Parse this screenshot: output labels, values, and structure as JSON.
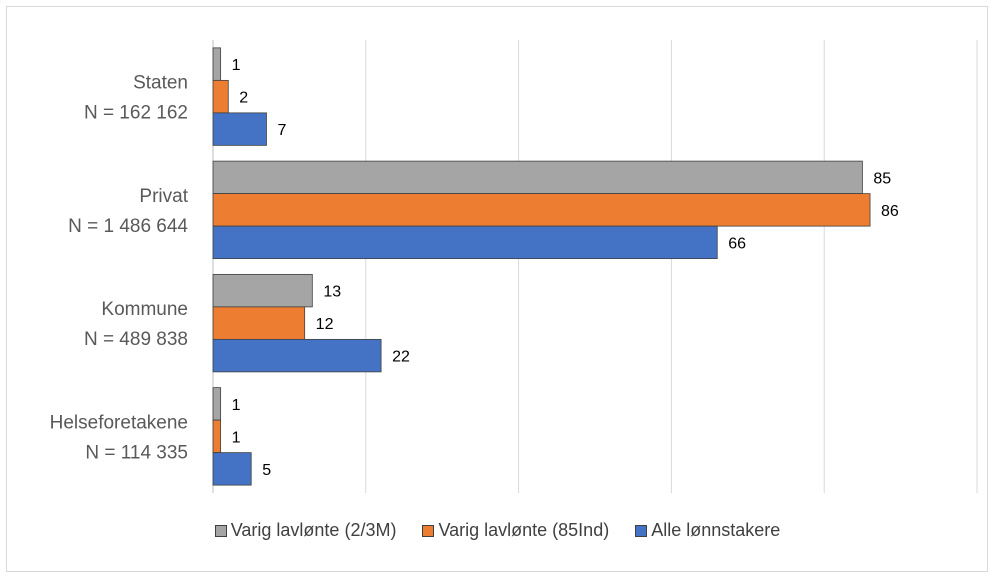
{
  "chart_data": {
    "type": "bar",
    "orientation": "horizontal",
    "categories": [
      {
        "name": "Staten",
        "n": "N = 162 162"
      },
      {
        "name": "Privat",
        "n": "N = 1 486 644"
      },
      {
        "name": "Kommune",
        "n": "N = 489 838"
      },
      {
        "name": "Helseforetakene",
        "n": "N = 114 335"
      }
    ],
    "series": [
      {
        "name": "Varig lavlønte (2/3M)",
        "color": "#a5a5a5",
        "values": [
          1,
          85,
          13,
          1
        ]
      },
      {
        "name": "Varig lavlønte (85Ind)",
        "color": "#ed7d31",
        "values": [
          2,
          86,
          12,
          1
        ]
      },
      {
        "name": "Alle lønnstakere",
        "color": "#4472c4",
        "values": [
          7,
          66,
          22,
          5
        ]
      }
    ],
    "xlim": [
      0,
      100
    ],
    "gridlines": [
      0,
      20,
      40,
      60,
      80,
      100
    ],
    "grid": true,
    "legend_position": "bottom",
    "tick_labels_visible": false
  }
}
